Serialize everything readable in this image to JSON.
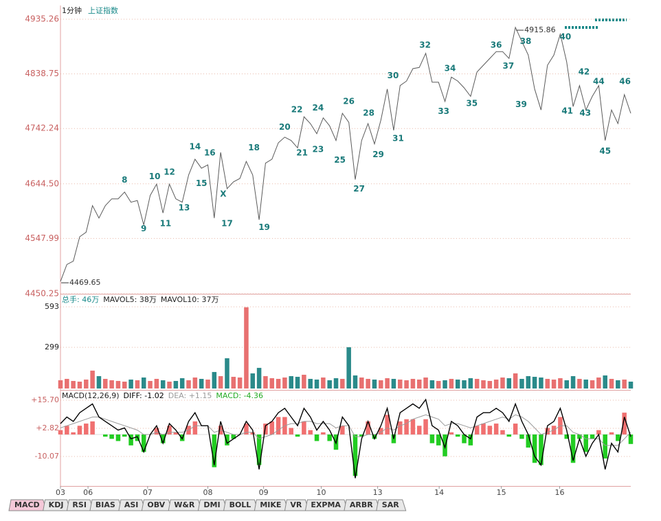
{
  "chart_data": [
    {
      "type": "line",
      "title": "1分钟",
      "subtitle": "上证指数",
      "color": "#5a5a5a",
      "values": [
        4472,
        4502,
        4508,
        4551,
        4559,
        4606,
        4584,
        4606,
        4618,
        4618,
        4630,
        4612,
        4615,
        4572,
        4624,
        4644,
        4593,
        4644,
        4618,
        4612,
        4660,
        4688,
        4672,
        4678,
        4584,
        4700,
        4636,
        4648,
        4654,
        4684,
        4660,
        4581,
        4681,
        4688,
        4717,
        4727,
        4721,
        4708,
        4763,
        4751,
        4733,
        4761,
        4747,
        4721,
        4769,
        4753,
        4652,
        4721,
        4751,
        4715,
        4757,
        4812,
        4739,
        4818,
        4826,
        4848,
        4850,
        4875,
        4824,
        4824,
        4790,
        4833,
        4826,
        4814,
        4799,
        4842,
        4854,
        4866,
        4878,
        4878,
        4866,
        4921,
        4896,
        4872,
        4812,
        4775,
        4854,
        4872,
        4909,
        4860,
        4781,
        4818,
        4775,
        4799,
        4818,
        4721,
        4775,
        4751,
        4802,
        4769
      ],
      "xlim": [
        0,
        89
      ],
      "xticks": [
        {
          "value": 0,
          "label": "03"
        },
        {
          "value": 4.3,
          "label": "06"
        },
        {
          "value": 13.6,
          "label": "07"
        },
        {
          "value": 23,
          "label": "08"
        },
        {
          "value": 31.7,
          "label": "09"
        },
        {
          "value": 40.7,
          "label": "10"
        },
        {
          "value": 49.5,
          "label": "13"
        },
        {
          "value": 59.1,
          "label": "14"
        },
        {
          "value": 68.8,
          "label": "15"
        },
        {
          "value": 77.9,
          "label": "16"
        }
      ],
      "ylim": [
        4450.25,
        4935.26
      ],
      "yticks": [
        4450.25,
        4547.99,
        {
          "value": 4644.5,
          "label": "4644.50"
        },
        4742.24,
        4838.75,
        4935.26
      ],
      "grid": true,
      "high": {
        "x": 71,
        "value": 4915.86
      },
      "low": {
        "x": 0,
        "value": 4469.65
      },
      "annotations": [
        {
          "text": "8",
          "x": 10,
          "y": 4651
        },
        {
          "text": "9",
          "x": 13,
          "y": 4565
        },
        {
          "text": "10",
          "x": 14.7,
          "y": 4657
        },
        {
          "text": "11",
          "x": 16.4,
          "y": 4574
        },
        {
          "text": "12",
          "x": 17,
          "y": 4665
        },
        {
          "text": "13",
          "x": 19.3,
          "y": 4602
        },
        {
          "text": "14",
          "x": 21,
          "y": 4710
        },
        {
          "text": "15",
          "x": 22,
          "y": 4645
        },
        {
          "text": "16",
          "x": 23.3,
          "y": 4699
        },
        {
          "text": "X",
          "x": 25.4,
          "y": 4626
        },
        {
          "text": "17",
          "x": 26,
          "y": 4574
        },
        {
          "text": "18",
          "x": 30.2,
          "y": 4708
        },
        {
          "text": "19",
          "x": 31.8,
          "y": 4567
        },
        {
          "text": "20",
          "x": 35,
          "y": 4744
        },
        {
          "text": "21",
          "x": 37.7,
          "y": 4699
        },
        {
          "text": "22",
          "x": 36.9,
          "y": 4775
        },
        {
          "text": "23",
          "x": 40.2,
          "y": 4705
        },
        {
          "text": "24",
          "x": 40.2,
          "y": 4778
        },
        {
          "text": "25",
          "x": 43.6,
          "y": 4686
        },
        {
          "text": "26",
          "x": 45,
          "y": 4790
        },
        {
          "text": "27",
          "x": 46.6,
          "y": 4635
        },
        {
          "text": "28",
          "x": 48.1,
          "y": 4769
        },
        {
          "text": "29",
          "x": 49.6,
          "y": 4696
        },
        {
          "text": "30",
          "x": 51.9,
          "y": 4835
        },
        {
          "text": "31",
          "x": 52.7,
          "y": 4724
        },
        {
          "text": "32",
          "x": 56.9,
          "y": 4889
        },
        {
          "text": "33",
          "x": 59.8,
          "y": 4772
        },
        {
          "text": "34",
          "x": 60.8,
          "y": 4848
        },
        {
          "text": "35",
          "x": 64.2,
          "y": 4786
        },
        {
          "text": "36",
          "x": 68,
          "y": 4889
        },
        {
          "text": "37",
          "x": 69.9,
          "y": 4852
        },
        {
          "text": "38",
          "x": 72.6,
          "y": 4896
        },
        {
          "text": "39",
          "x": 71.9,
          "y": 4784
        },
        {
          "text": "40",
          "x": 78.8,
          "y": 4904
        },
        {
          "text": "41",
          "x": 79.1,
          "y": 4773
        },
        {
          "text": "42",
          "x": 81.7,
          "y": 4842
        },
        {
          "text": "43",
          "x": 81.9,
          "y": 4769
        },
        {
          "text": "44",
          "x": 84,
          "y": 4825
        },
        {
          "text": "45",
          "x": 85,
          "y": 4702
        },
        {
          "text": "46",
          "x": 88.1,
          "y": 4825
        }
      ]
    },
    {
      "type": "bar",
      "headers": [
        {
          "text": "总手: 46万",
          "color": "#1a8a8a"
        },
        {
          "text": "MAVOL5: 38万",
          "color": "#222222"
        },
        {
          "text": "MAVOL10: 37万",
          "color": "#222222"
        }
      ],
      "up_color": "#e87070",
      "down_color": "#2a8a8a",
      "values": [
        60,
        70,
        55,
        50,
        65,
        130,
        90,
        70,
        60,
        55,
        50,
        65,
        60,
        80,
        55,
        70,
        60,
        50,
        55,
        75,
        60,
        80,
        70,
        65,
        120,
        90,
        220,
        85,
        80,
        590,
        110,
        150,
        90,
        75,
        70,
        80,
        90,
        85,
        100,
        70,
        65,
        80,
        60,
        75,
        70,
        300,
        95,
        80,
        70,
        65,
        60,
        75,
        70,
        65,
        60,
        70,
        65,
        80,
        60,
        55,
        60,
        70,
        65,
        60,
        75,
        70,
        60,
        55,
        65,
        80,
        75,
        110,
        70,
        90,
        85,
        80,
        70,
        65,
        75,
        60,
        90,
        70,
        65,
        60,
        80,
        95,
        70,
        60,
        65,
        50
      ],
      "ylim": [
        0,
        678
      ],
      "yticks": [
        299,
        593
      ],
      "grid": true
    },
    {
      "type": "macd",
      "title": "MACD(12,26,9)",
      "series": [
        {
          "label": "DIFF: -1.02",
          "color": "#000000",
          "values": [
            5,
            8,
            6,
            10,
            12,
            14,
            8,
            6,
            4,
            2,
            3,
            -2,
            -1,
            -8,
            0,
            4,
            -4,
            5,
            2,
            -2,
            6,
            10,
            4,
            4,
            -14,
            6,
            -4,
            -2,
            0,
            6,
            2,
            -16,
            4,
            6,
            10,
            12,
            8,
            4,
            12,
            8,
            2,
            6,
            2,
            -4,
            8,
            4,
            -20,
            -2,
            6,
            -2,
            4,
            12,
            -2,
            10,
            12,
            14,
            12,
            16,
            4,
            2,
            -6,
            6,
            4,
            0,
            -2,
            8,
            10,
            10,
            12,
            10,
            6,
            14,
            6,
            0,
            -10,
            -14,
            4,
            6,
            12,
            2,
            -12,
            -2,
            -10,
            -4,
            0,
            -16,
            -4,
            -8,
            8,
            -1.02
          ]
        },
        {
          "label": "DEA: +1.15",
          "color": "#9a9a9a",
          "values": [
            3,
            4,
            5,
            6,
            7,
            8,
            8,
            7,
            6,
            5,
            4,
            3,
            2,
            0,
            0,
            1,
            0,
            1,
            1,
            1,
            2,
            4,
            4,
            4,
            1,
            2,
            1,
            0,
            0,
            1,
            1,
            -2,
            -1,
            0,
            2,
            4,
            5,
            5,
            6,
            6,
            5,
            5,
            5,
            3,
            4,
            4,
            -1,
            -1,
            0,
            0,
            1,
            3,
            2,
            4,
            5,
            7,
            8,
            9,
            8,
            7,
            4,
            5,
            5,
            4,
            3,
            4,
            5,
            6,
            7,
            8,
            7,
            9,
            8,
            6,
            3,
            0,
            1,
            2,
            4,
            4,
            1,
            0,
            -2,
            -2,
            -2,
            -5,
            -5,
            -5,
            -2,
            1.15
          ]
        },
        {
          "label": "MACD: -4.36",
          "color": "#22aa22",
          "up_color": "#f07070",
          "down_color": "#22cc22",
          "values": [
            2,
            4,
            1,
            4,
            5,
            6,
            0,
            -1,
            -2,
            -3,
            -1,
            -5,
            -3,
            -8,
            0,
            3,
            -4,
            4,
            1,
            -3,
            4,
            6,
            0,
            0,
            -15,
            4,
            -5,
            -2,
            0,
            5,
            1,
            -14,
            5,
            6,
            8,
            8,
            3,
            -1,
            6,
            2,
            -3,
            1,
            -3,
            -7,
            4,
            0,
            -19,
            -1,
            6,
            -2,
            3,
            9,
            -4,
            6,
            7,
            7,
            4,
            7,
            -4,
            -5,
            -10,
            1,
            -1,
            -4,
            -5,
            4,
            5,
            4,
            5,
            2,
            -1,
            5,
            -2,
            -6,
            -13,
            -14,
            3,
            4,
            8,
            -2,
            -13,
            -2,
            -8,
            -2,
            2,
            -11,
            1,
            -3,
            10,
            -4.36
          ]
        }
      ],
      "ylim": [
        -23.6,
        19.8
      ],
      "yticks": [
        -10.07,
        {
          "value": 2.82,
          "label": "+2.82"
        },
        {
          "value": 15.7,
          "label": "+15.70"
        }
      ],
      "grid": true
    }
  ],
  "tabs": [
    "MACD",
    "KDJ",
    "RSI",
    "BIAS",
    "ASI",
    "OBV",
    "W&R",
    "DMI",
    "BOLL",
    "MIKE",
    "VR",
    "EXPMA",
    "ARBR",
    "SAR"
  ]
}
